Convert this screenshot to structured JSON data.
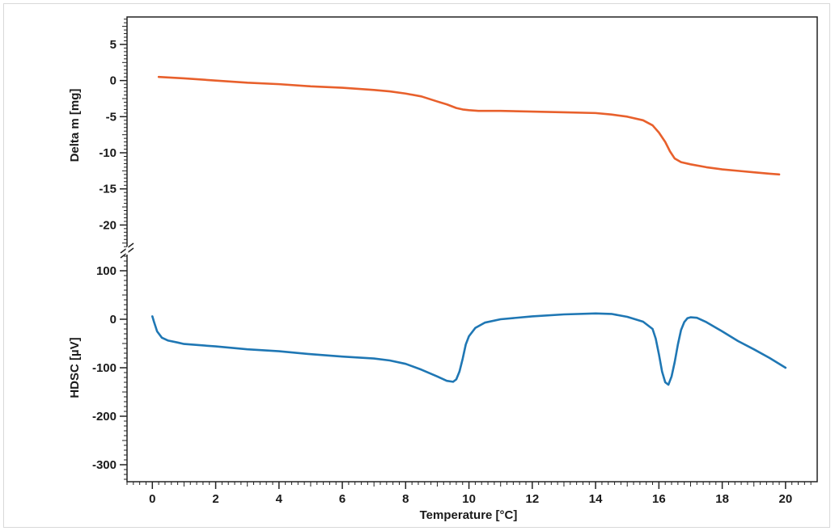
{
  "chart_data": {
    "type": "line",
    "xlabel": "Temperature [°C]",
    "xlim": [
      -0.8,
      21.0
    ],
    "x_ticks": [
      0,
      2,
      4,
      6,
      8,
      10,
      12,
      14,
      16,
      18,
      20
    ],
    "x_tick_labels": [
      "0",
      "2",
      "4",
      "6",
      "8",
      "10",
      "12",
      "14",
      "16",
      "18",
      "20"
    ],
    "grid": false,
    "legend": "none",
    "panels": [
      {
        "name": "upper",
        "ylabel": "Delta m [mg]",
        "ylim": [
          -23.2,
          8.8
        ],
        "y_ticks": [
          5,
          0,
          -5,
          -10,
          -15,
          -20
        ],
        "y_tick_labels": [
          "5",
          "0",
          "-5",
          "-10",
          "-15",
          "-20"
        ],
        "series": [
          {
            "color": "#e8602c",
            "x": [
              0.2,
              1,
              2,
              3,
              4,
              5,
              6,
              7,
              7.5,
              8,
              8.5,
              9,
              9.3,
              9.6,
              9.8,
              10,
              10.3,
              11,
              12,
              13,
              14,
              14.5,
              15,
              15.5,
              15.8,
              16.0,
              16.2,
              16.35,
              16.5,
              16.7,
              17,
              17.5,
              18,
              18.5,
              19,
              19.5,
              19.8
            ],
            "y": [
              0.5,
              0.3,
              0.0,
              -0.3,
              -0.5,
              -0.8,
              -1.0,
              -1.3,
              -1.5,
              -1.8,
              -2.2,
              -2.9,
              -3.3,
              -3.8,
              -4.0,
              -4.1,
              -4.2,
              -4.2,
              -4.3,
              -4.4,
              -4.5,
              -4.7,
              -5.0,
              -5.5,
              -6.2,
              -7.2,
              -8.5,
              -9.8,
              -10.8,
              -11.3,
              -11.6,
              -12.0,
              -12.3,
              -12.5,
              -12.7,
              -12.9,
              -13.0
            ]
          }
        ]
      },
      {
        "name": "lower",
        "ylabel": "HDSC [µV]",
        "ylim": [
          -335,
          140
        ],
        "y_ticks": [
          100,
          0,
          -100,
          -200,
          -300
        ],
        "y_tick_labels": [
          "100",
          "0",
          "-100",
          "-200",
          "-300"
        ],
        "series": [
          {
            "color": "#1f77b4",
            "x": [
              0.0,
              0.05,
              0.15,
              0.3,
              0.5,
              0.8,
              1,
              2,
              3,
              4,
              5,
              6,
              7,
              7.5,
              8,
              8.5,
              9,
              9.3,
              9.5,
              9.6,
              9.7,
              9.8,
              9.9,
              10.0,
              10.2,
              10.5,
              11,
              12,
              13,
              14,
              14.5,
              15,
              15.5,
              15.8,
              15.9,
              16.0,
              16.1,
              16.2,
              16.3,
              16.4,
              16.5,
              16.6,
              16.7,
              16.8,
              16.9,
              17.0,
              17.2,
              17.5,
              18,
              18.5,
              19,
              19.5,
              20.0
            ],
            "y": [
              6,
              -5,
              -25,
              -38,
              -44,
              -48,
              -51,
              -56,
              -62,
              -66,
              -72,
              -77,
              -81,
              -85,
              -92,
              -104,
              -118,
              -127,
              -129,
              -124,
              -108,
              -82,
              -52,
              -35,
              -18,
              -7,
              0,
              6,
              10,
              12,
              11,
              5,
              -5,
              -20,
              -40,
              -72,
              -108,
              -130,
              -135,
              -118,
              -88,
              -52,
              -22,
              -6,
              2,
              4,
              3,
              -6,
              -25,
              -45,
              -62,
              -80,
              -100
            ]
          }
        ]
      }
    ]
  }
}
